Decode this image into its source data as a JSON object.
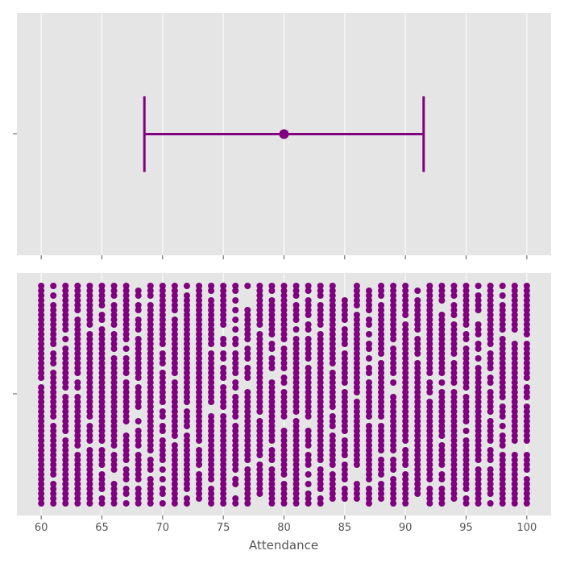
{
  "chart_data": [
    {
      "type": "errorbar",
      "value": 80,
      "error": 11.5,
      "color": "#800080",
      "xlim": [
        58,
        102
      ],
      "xticks": [
        60,
        65,
        70,
        75,
        80,
        85,
        90,
        95,
        100
      ],
      "grid": true
    },
    {
      "type": "strip",
      "x": [
        60,
        61,
        62,
        63,
        64,
        65,
        66,
        67,
        68,
        69,
        70,
        71,
        72,
        73,
        74,
        75,
        76,
        77,
        78,
        79,
        80,
        81,
        82,
        83,
        84,
        85,
        86,
        87,
        88,
        89,
        90,
        91,
        92,
        93,
        94,
        95,
        96,
        97,
        98,
        99,
        100
      ],
      "color": "#800080",
      "xlabel": "Attendance",
      "xlim": [
        58,
        102
      ],
      "xticks": [
        60,
        65,
        70,
        75,
        80,
        85,
        90,
        95,
        100
      ],
      "grid": true
    }
  ]
}
